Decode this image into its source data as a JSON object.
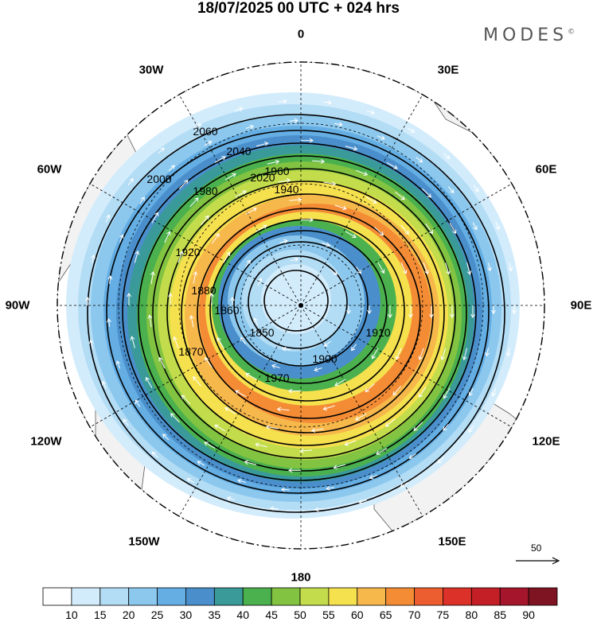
{
  "title": "18/07/2025  00 UTC  + 024 hrs",
  "brand": "MODES",
  "brand_mark": "©",
  "lon_labels": [
    "0",
    "30E",
    "60E",
    "90E",
    "120E",
    "150E",
    "180",
    "150W",
    "120W",
    "90W",
    "60W",
    "30W"
  ],
  "contour_labels": [
    "2060",
    "2040",
    "2020",
    "2000",
    "1980",
    "1960",
    "1940",
    "1920",
    "1900",
    "1880",
    "1860",
    "1850",
    "1870",
    "1910",
    "1970"
  ],
  "colorbar": {
    "ticks": [
      "10",
      "15",
      "20",
      "25",
      "30",
      "35",
      "40",
      "45",
      "50",
      "55",
      "60",
      "65",
      "70",
      "75",
      "80",
      "85",
      "90"
    ],
    "colors": [
      "#ffffff",
      "#d3ecfb",
      "#b3dcf5",
      "#8cc8ee",
      "#64aee4",
      "#4a8fcb",
      "#3a9a9a",
      "#4bb14e",
      "#82c341",
      "#c3dc4b",
      "#f5e04e",
      "#f7b84b",
      "#f48c35",
      "#ec5e30",
      "#dc3128",
      "#c41f27",
      "#a5162d",
      "#7e1322"
    ]
  },
  "reference_vector": {
    "label": "50"
  },
  "colors": {
    "land": "#f2f2f2",
    "coast": "#555555",
    "contour": "#000000",
    "vector": "#ffffff"
  }
}
